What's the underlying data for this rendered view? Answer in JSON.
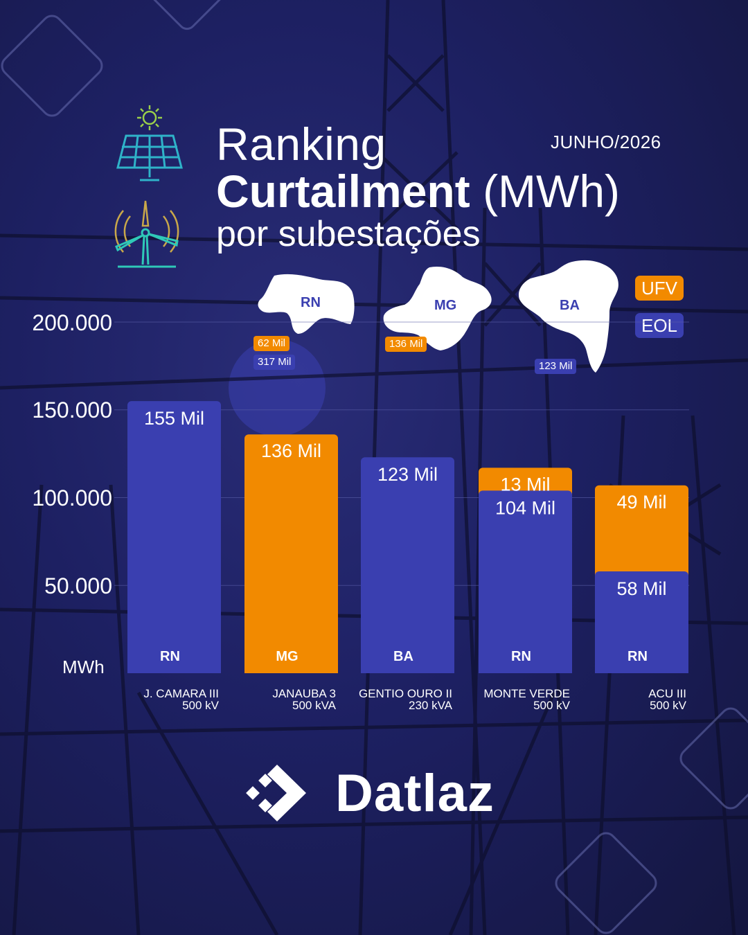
{
  "header": {
    "title_line1": "Ranking",
    "title_bold": "Curtailment",
    "title_unit": "(MWh)",
    "title_line3": "por subestações",
    "period": "JUNHO/2026"
  },
  "legend": {
    "ufv": "UFV",
    "eol": "EOL",
    "colors": {
      "ufv": "#f28a00",
      "eol": "#3a3fb0"
    }
  },
  "regions": [
    {
      "state": "RN",
      "ufv": "62 Mil",
      "eol": "317 Mil"
    },
    {
      "state": "MG",
      "ufv": "136 Mil"
    },
    {
      "state": "BA",
      "eol": "123 Mil"
    }
  ],
  "chart_data": {
    "type": "bar",
    "stacked": true,
    "ylabel": "MWh",
    "ylim": [
      0,
      200000
    ],
    "yticks": [
      "200.000",
      "150.000",
      "100.000",
      "50.000"
    ],
    "grid": true,
    "legend_position": "top-right",
    "categories": [
      {
        "name": "J. CAMARA III",
        "voltage": "500 kV",
        "state": "RN"
      },
      {
        "name": "JANAUBA 3",
        "voltage": "500 kVA",
        "state": "MG"
      },
      {
        "name": "GENTIO OURO II",
        "voltage": "230 kVA",
        "state": "BA"
      },
      {
        "name": "MONTE VERDE",
        "voltage": "500 kV",
        "state": "RN"
      },
      {
        "name": "ACU III",
        "voltage": "500 kV",
        "state": "RN"
      }
    ],
    "series": [
      {
        "name": "EOL",
        "color": "#3a3fb0",
        "values": [
          155000,
          null,
          123000,
          104000,
          58000
        ],
        "labels": [
          "155 Mil",
          "",
          "123 Mil",
          "104 Mil",
          "58 Mil"
        ]
      },
      {
        "name": "UFV",
        "color": "#f28a00",
        "values": [
          null,
          136000,
          null,
          13000,
          49000
        ],
        "labels": [
          "",
          "136 Mil",
          "",
          "13 Mil",
          "49 Mil"
        ]
      }
    ]
  },
  "logo": {
    "text": "Datlaz"
  }
}
